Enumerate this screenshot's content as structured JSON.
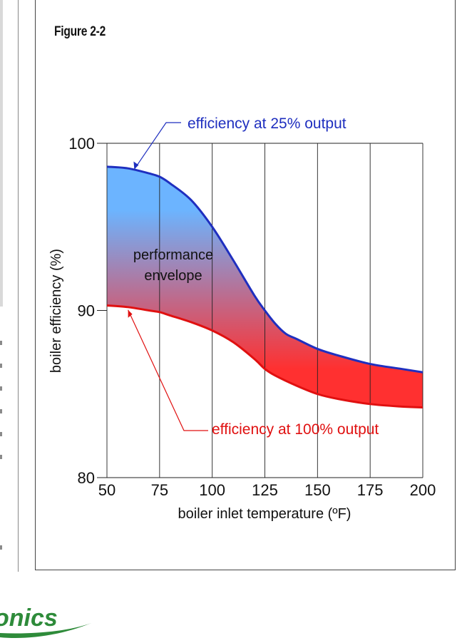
{
  "figure_label": "Figure 2-2",
  "logo_text": "onics",
  "colors": {
    "upper_line": "#1f2fbf",
    "lower_line": "#e01010",
    "fill_top": "#6cb4ff",
    "fill_bottom": "#ff3030",
    "logo": "#2e8b3a"
  },
  "chart_data": {
    "type": "area",
    "title": "",
    "xlabel": "boiler inlet temperature (ºF)",
    "ylabel": "boiler efficiency (%)",
    "xlim": [
      50,
      200
    ],
    "ylim": [
      80,
      100
    ],
    "x_ticks": [
      50,
      75,
      100,
      125,
      150,
      175,
      200
    ],
    "y_ticks": [
      80,
      90,
      100
    ],
    "grid": "vertical",
    "series": [
      {
        "name": "efficiency at 25% output",
        "x": [
          50,
          60,
          70,
          75,
          80,
          90,
          100,
          110,
          120,
          125,
          130,
          135,
          140,
          150,
          160,
          175,
          190,
          200
        ],
        "values": [
          98.6,
          98.5,
          98.2,
          98.0,
          97.6,
          96.6,
          95.0,
          93.0,
          90.9,
          90.0,
          89.2,
          88.6,
          88.3,
          87.7,
          87.3,
          86.8,
          86.5,
          86.3
        ]
      },
      {
        "name": "efficiency at 100% output",
        "x": [
          50,
          60,
          70,
          75,
          80,
          90,
          100,
          110,
          120,
          125,
          130,
          140,
          150,
          160,
          175,
          190,
          200
        ],
        "values": [
          90.3,
          90.2,
          90.0,
          89.9,
          89.7,
          89.3,
          88.8,
          88.1,
          87.1,
          86.5,
          86.1,
          85.5,
          85.0,
          84.7,
          84.4,
          84.25,
          84.2
        ]
      }
    ],
    "annotations": [
      {
        "text": "efficiency at 25% output",
        "points_to": [
          63,
          99.0
        ]
      },
      {
        "text": "efficiency at 100% output",
        "points_to": [
          58,
          90.2
        ]
      },
      {
        "text": "performance",
        "at": [
          81,
          93.4
        ]
      },
      {
        "text": "envelope",
        "at": [
          81,
          92.2
        ]
      }
    ]
  }
}
